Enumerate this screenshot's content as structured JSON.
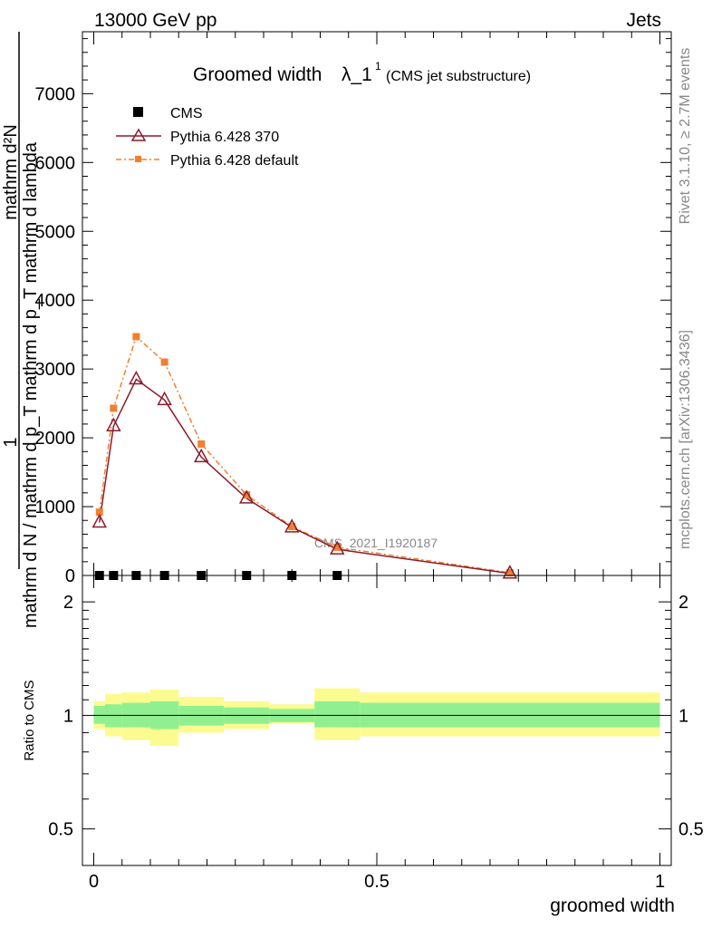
{
  "header": {
    "left": "13000 GeV pp",
    "right": "Jets"
  },
  "side_labels": {
    "rivet": "Rivet 3.1.10, ≥ 2.7M events",
    "mcplots": "mcplots.cern.ch [arXiv:1306.3436]"
  },
  "chart_data": [
    {
      "type": "line",
      "title_main": "Groomed width",
      "title_symbol": "λ_1",
      "title_sup": "1",
      "title_sub": "(CMS jet substructure)",
      "ylabel_num": "1",
      "ylabel_den": "mathrm d N / mathrm d p_T mathrm d p_T mathrm d lambda",
      "ylabel_top": "mathrm d²N",
      "watermark": "CMS_2021_I1920187",
      "ylim": [
        0,
        7900
      ],
      "xlim": [
        -0.02,
        1.02
      ],
      "y_ticks": [
        0,
        1000,
        2000,
        3000,
        4000,
        5000,
        6000,
        7000
      ],
      "y_tick_labels": [
        "0",
        "1000",
        "2000",
        "3000",
        "4000",
        "5000",
        "6000",
        "7000"
      ],
      "legend": [
        {
          "label": "CMS",
          "color": "#000000",
          "marker": "square"
        },
        {
          "label": "Pythia 6.428 370",
          "color": "#8b1a2b",
          "marker": "open-triangle"
        },
        {
          "label": "Pythia 6.428 default",
          "color": "#f08030",
          "marker": "small-square"
        }
      ],
      "series": [
        {
          "name": "CMS",
          "color": "#000000",
          "x": [
            0.01,
            0.035,
            0.075,
            0.125,
            0.19,
            0.27,
            0.35,
            0.43
          ],
          "values": [
            0,
            0,
            0,
            0,
            0,
            0,
            0,
            0
          ]
        },
        {
          "name": "Pythia 6.428 370",
          "color": "#8b1a2b",
          "x": [
            0.01,
            0.035,
            0.075,
            0.125,
            0.19,
            0.27,
            0.35,
            0.43,
            0.735
          ],
          "values": [
            770,
            2170,
            2850,
            2550,
            1720,
            1120,
            700,
            380,
            30
          ]
        },
        {
          "name": "Pythia 6.428 default",
          "color": "#f08030",
          "x": [
            0.01,
            0.035,
            0.075,
            0.125,
            0.19,
            0.27,
            0.35,
            0.43,
            0.735
          ],
          "values": [
            920,
            2430,
            3470,
            3100,
            1910,
            1170,
            710,
            410,
            40
          ]
        }
      ]
    },
    {
      "type": "area",
      "ylabel": "Ratio to CMS",
      "xlabel": "groomed width",
      "xlim": [
        -0.02,
        1.02
      ],
      "ylim": [
        0.4,
        2.35
      ],
      "log_scale": true,
      "y_ticks": [
        0.5,
        1,
        2
      ],
      "y_tick_labels": [
        "0.5",
        "1",
        "2"
      ],
      "x_ticks": [
        0,
        0.5,
        1
      ],
      "x_tick_labels": [
        "0",
        "0.5",
        "1"
      ],
      "bins": [
        {
          "lo": 0.0,
          "hi": 0.02,
          "inner": [
            0.95,
            1.06
          ],
          "outer": [
            0.92,
            1.09
          ]
        },
        {
          "lo": 0.02,
          "hi": 0.05,
          "inner": [
            0.93,
            1.07
          ],
          "outer": [
            0.88,
            1.14
          ]
        },
        {
          "lo": 0.05,
          "hi": 0.1,
          "inner": [
            0.93,
            1.08
          ],
          "outer": [
            0.86,
            1.15
          ]
        },
        {
          "lo": 0.1,
          "hi": 0.15,
          "inner": [
            0.92,
            1.09
          ],
          "outer": [
            0.83,
            1.17
          ]
        },
        {
          "lo": 0.15,
          "hi": 0.23,
          "inner": [
            0.94,
            1.06
          ],
          "outer": [
            0.9,
            1.12
          ]
        },
        {
          "lo": 0.23,
          "hi": 0.31,
          "inner": [
            0.95,
            1.05
          ],
          "outer": [
            0.92,
            1.09
          ]
        },
        {
          "lo": 0.31,
          "hi": 0.39,
          "inner": [
            0.96,
            1.04
          ],
          "outer": [
            0.95,
            1.07
          ]
        },
        {
          "lo": 0.39,
          "hi": 0.47,
          "inner": [
            0.93,
            1.09
          ],
          "outer": [
            0.86,
            1.18
          ]
        },
        {
          "lo": 0.47,
          "hi": 1.0,
          "inner": [
            0.93,
            1.08
          ],
          "outer": [
            0.88,
            1.15
          ]
        }
      ],
      "inner_color": "#90f090",
      "outer_color": "#fbfb90",
      "reference_line": 1
    }
  ]
}
